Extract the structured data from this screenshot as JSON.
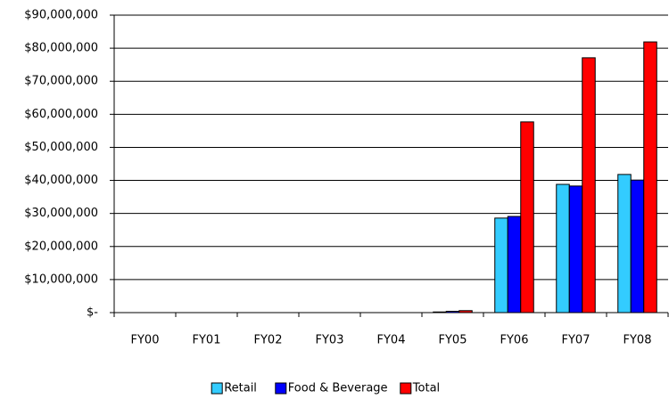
{
  "chart_data": {
    "type": "bar",
    "categories": [
      "FY00",
      "FY01",
      "FY02",
      "FY03",
      "FY04",
      "FY05",
      "FY06",
      "FY07",
      "FY08"
    ],
    "series": [
      {
        "name": "Retail",
        "color": "#33ccff",
        "values": [
          0,
          0,
          0,
          0,
          0,
          200000,
          28600000,
          38800000,
          41800000
        ]
      },
      {
        "name": "Food & Beverage",
        "color": "#0000ff",
        "values": [
          0,
          0,
          0,
          0,
          0,
          400000,
          29100000,
          38300000,
          40100000
        ]
      },
      {
        "name": "Total",
        "color": "#ff0000",
        "values": [
          0,
          0,
          0,
          0,
          0,
          600000,
          57700000,
          77100000,
          81900000
        ]
      }
    ],
    "ylim": [
      0,
      90000000
    ],
    "yticks": [
      {
        "value": 0,
        "label": "$-"
      },
      {
        "value": 10000000,
        "label": "$10,000,000"
      },
      {
        "value": 20000000,
        "label": "$20,000,000"
      },
      {
        "value": 30000000,
        "label": "$30,000,000"
      },
      {
        "value": 40000000,
        "label": "$40,000,000"
      },
      {
        "value": 50000000,
        "label": "$50,000,000"
      },
      {
        "value": 60000000,
        "label": "$60,000,000"
      },
      {
        "value": 70000000,
        "label": "$70,000,000"
      },
      {
        "value": 80000000,
        "label": "$80,000,000"
      },
      {
        "value": 90000000,
        "label": "$90,000,000"
      }
    ],
    "grid": true,
    "legend": "bottom"
  }
}
